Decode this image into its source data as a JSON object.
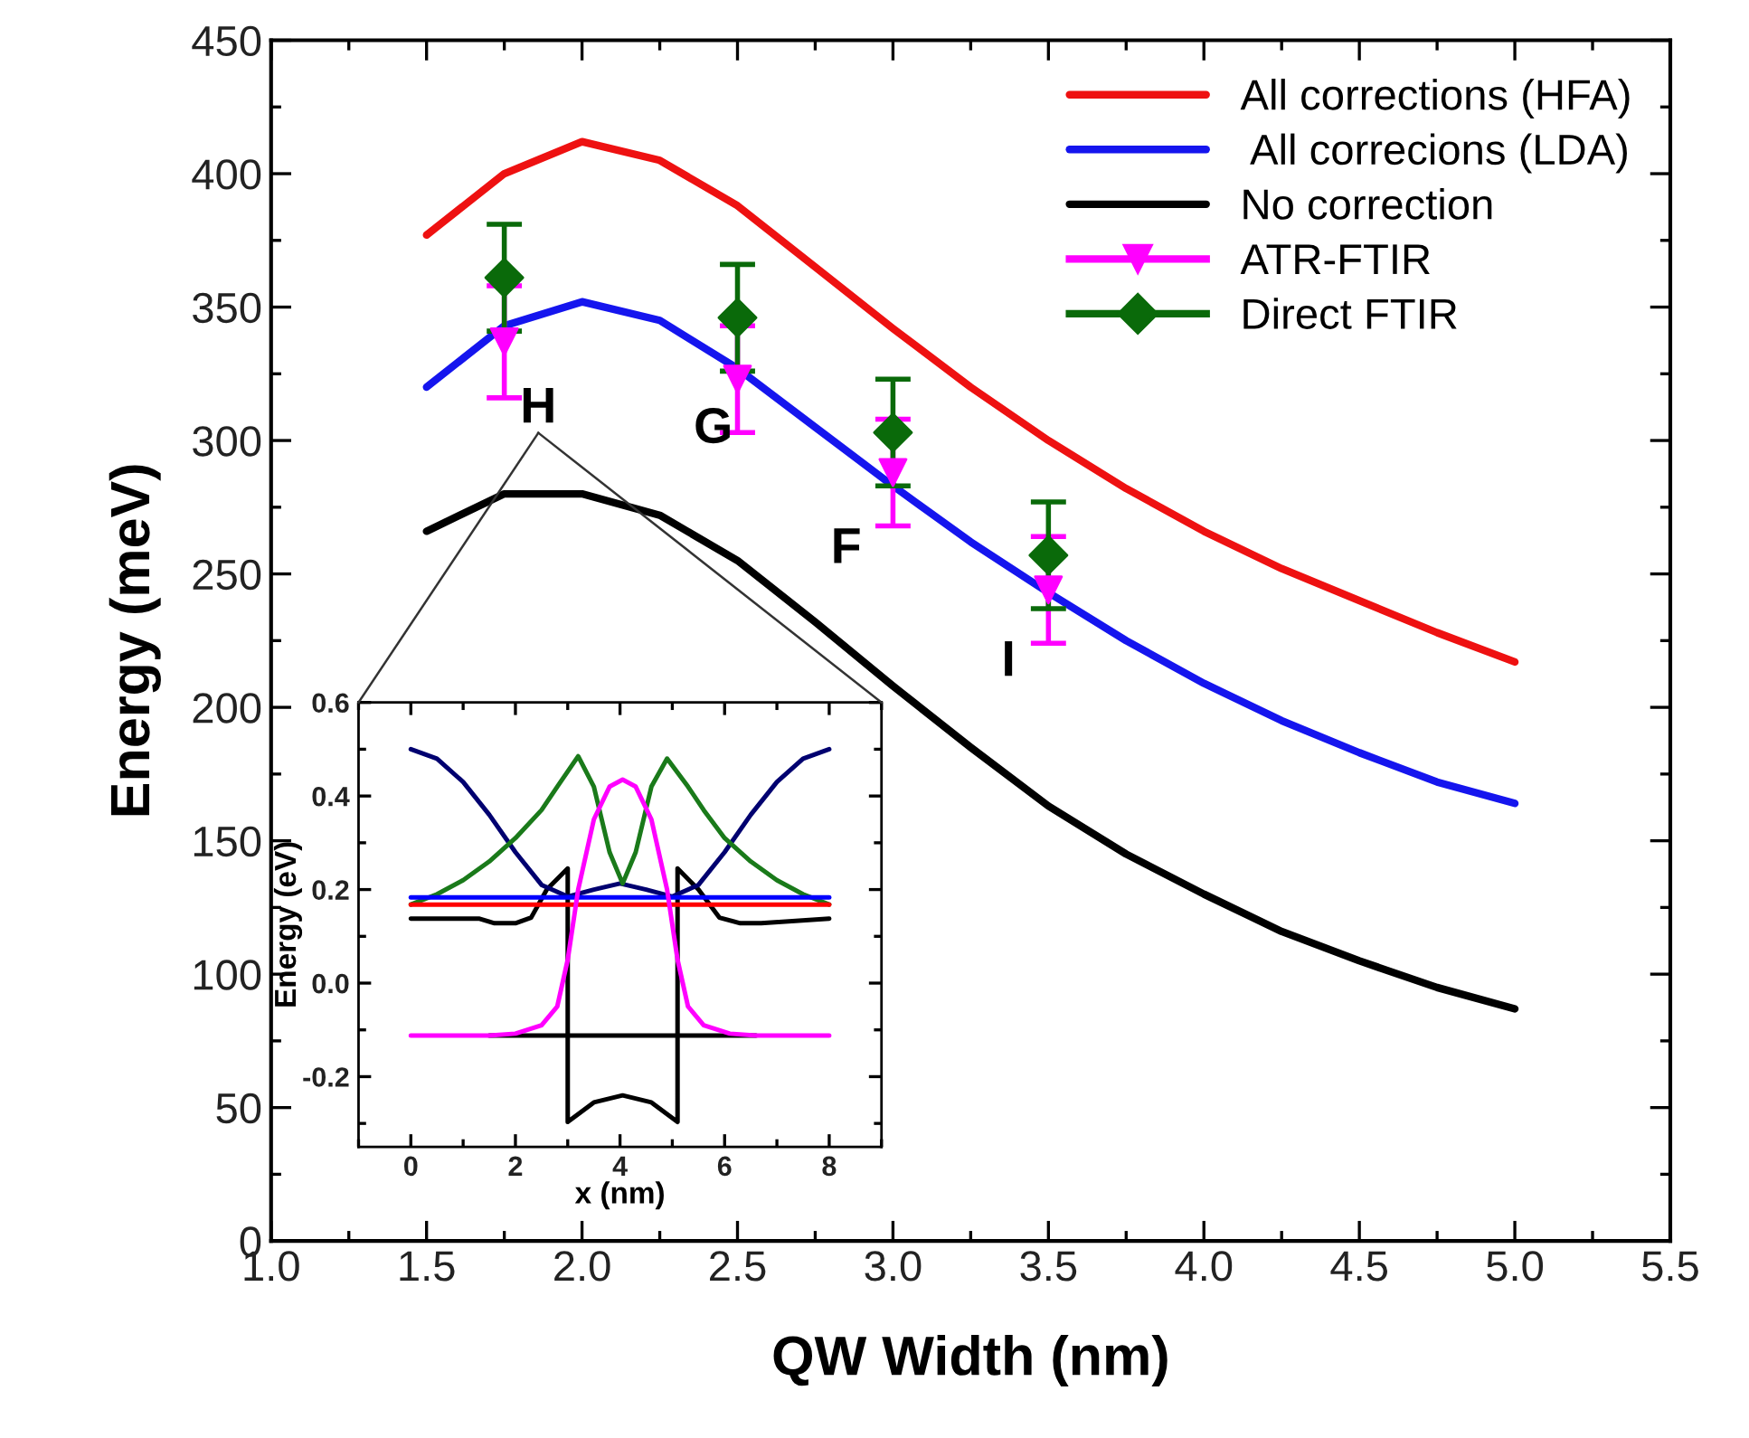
{
  "chart_data": [
    {
      "type": "line",
      "xlabel": "QW Width (nm)",
      "ylabel": "Energy (meV)",
      "xlim": [
        1.0,
        5.5
      ],
      "xticks": [
        {
          "value": 1.0,
          "label": "1.0"
        },
        {
          "value": 1.5,
          "label": "1.5"
        },
        {
          "value": 2.0,
          "label": "2.0"
        },
        {
          "value": 2.5,
          "label": "2.5"
        },
        {
          "value": 3.0,
          "label": "3.0"
        },
        {
          "value": 3.5,
          "label": "3.5"
        },
        {
          "value": 4.0,
          "label": "4.0"
        },
        {
          "value": 4.5,
          "label": "4.5"
        },
        {
          "value": 5.0,
          "label": "5.0"
        },
        {
          "value": 5.5,
          "label": "5.5"
        }
      ],
      "ylim": [
        0,
        450
      ],
      "yticks": [
        0,
        50,
        100,
        150,
        200,
        250,
        300,
        350,
        400,
        450
      ],
      "grid": false,
      "legend": "top right",
      "marker": "none",
      "line_style": "solid",
      "series": [
        {
          "name": "All corrections (HFA)",
          "color": "#ee1111",
          "type": "line",
          "x": [
            1.5,
            1.75,
            2.0,
            2.25,
            2.5,
            2.75,
            3.0,
            3.25,
            3.5,
            3.75,
            4.0,
            4.25,
            4.5,
            4.75,
            5.0
          ],
          "values": [
            377,
            400,
            412,
            405,
            388,
            365,
            342,
            320,
            300,
            282,
            266,
            252,
            240,
            228,
            217
          ]
        },
        {
          "name": " All correcions (LDA)",
          "color": "#1515ee",
          "type": "line",
          "x": [
            1.5,
            1.75,
            2.0,
            2.25,
            2.5,
            2.75,
            3.0,
            3.25,
            3.5,
            3.75,
            4.0,
            4.25,
            4.5,
            4.75,
            5.0
          ],
          "values": [
            320,
            343,
            352,
            345,
            327,
            305,
            283,
            262,
            243,
            225,
            209,
            195,
            183,
            172,
            164
          ]
        },
        {
          "name": "No correction",
          "color": "#000000",
          "type": "line",
          "x": [
            1.5,
            1.75,
            2.0,
            2.25,
            2.5,
            2.75,
            3.0,
            3.25,
            3.5,
            3.75,
            4.0,
            4.25,
            4.5,
            4.75,
            5.0
          ],
          "values": [
            266,
            280,
            280,
            272,
            255,
            232,
            208,
            185,
            163,
            145,
            130,
            116,
            105,
            95,
            87
          ]
        },
        {
          "name": "ATR-FTIR",
          "color": "#ff00ff",
          "type": "scatter",
          "marker": "triangle",
          "x": [
            1.75,
            2.5,
            3.0,
            3.5
          ],
          "values": [
            337,
            323,
            288,
            244
          ],
          "errors": [
            21,
            20,
            20,
            20
          ]
        },
        {
          "name": "Direct FTIR",
          "color": "#0a6a0a",
          "type": "scatter",
          "marker": "diamond",
          "x": [
            1.75,
            2.5,
            3.0,
            3.5
          ],
          "values": [
            361,
            346,
            303,
            257
          ],
          "errors": [
            20,
            20,
            20,
            20
          ]
        }
      ],
      "annotations": [
        "H",
        "G",
        "F",
        "I"
      ]
    },
    {
      "type": "line",
      "xlabel": "x (nm)",
      "ylabel": "Energy (eV)",
      "xlim": [
        -1,
        9
      ],
      "xticks": [
        0,
        2,
        4,
        6,
        8
      ],
      "ylim": [
        -0.35,
        0.6
      ],
      "yticks": [
        {
          "value": -0.2,
          "label": "-0.2"
        },
        {
          "value": 0.0,
          "label": "0.0"
        },
        0.2,
        0.4,
        0.6
      ],
      "grid": false,
      "legend": false,
      "marker": "none",
      "line_style": "solid",
      "series": [
        {
          "color": "#000000",
          "x": [
            0,
            1.3,
            1.6,
            2.0,
            2.3,
            2.6,
            3.0,
            3.0,
            3.5,
            4.05,
            4.6,
            5.1,
            5.1,
            5.5,
            5.9,
            6.3,
            6.7,
            8
          ],
          "values": [
            0.138,
            0.138,
            0.128,
            0.128,
            0.14,
            0.2,
            0.245,
            -0.297,
            -0.255,
            -0.24,
            -0.255,
            -0.297,
            0.245,
            0.2,
            0.14,
            0.128,
            0.128,
            0.138
          ]
        },
        {
          "color": "#000000",
          "x": [
            1.5,
            6.6
          ],
          "values": [
            -0.112,
            -0.112
          ]
        },
        {
          "color": "#000070",
          "x": [
            0,
            0.5,
            1,
            1.5,
            2,
            2.5,
            3,
            3.5,
            4,
            4.5,
            5,
            5.5,
            6,
            6.5,
            7,
            7.5,
            8
          ],
          "values": [
            0.5,
            0.48,
            0.43,
            0.36,
            0.28,
            0.21,
            0.185,
            0.2,
            0.213,
            0.2,
            0.185,
            0.21,
            0.28,
            0.36,
            0.43,
            0.48,
            0.5
          ]
        },
        {
          "color": "#1a7a1a",
          "x": [
            0,
            0.5,
            1,
            1.5,
            2,
            2.5,
            2.8,
            3.2,
            3.5,
            3.8,
            4.05,
            4.3,
            4.6,
            4.9,
            5.3,
            5.6,
            6,
            6.5,
            7,
            7.5,
            8
          ],
          "values": [
            0.168,
            0.19,
            0.22,
            0.26,
            0.31,
            0.37,
            0.42,
            0.485,
            0.42,
            0.28,
            0.213,
            0.28,
            0.42,
            0.48,
            0.42,
            0.37,
            0.31,
            0.26,
            0.22,
            0.19,
            0.168
          ]
        },
        {
          "color": "#0000ff",
          "x": [
            0,
            8
          ],
          "values": [
            0.183,
            0.183
          ]
        },
        {
          "color": "#ff0000",
          "x": [
            0,
            8
          ],
          "values": [
            0.168,
            0.168
          ]
        },
        {
          "color": "#ff00ff",
          "x": [
            0,
            1.5,
            2,
            2.5,
            2.8,
            3.0,
            3.2,
            3.5,
            3.8,
            4.05,
            4.3,
            4.6,
            4.9,
            5.1,
            5.3,
            5.6,
            6.1,
            6.6,
            8
          ],
          "values": [
            -0.112,
            -0.112,
            -0.108,
            -0.09,
            -0.05,
            0.05,
            0.2,
            0.35,
            0.42,
            0.435,
            0.42,
            0.35,
            0.2,
            0.05,
            -0.05,
            -0.09,
            -0.108,
            -0.112,
            -0.112
          ]
        }
      ]
    }
  ]
}
